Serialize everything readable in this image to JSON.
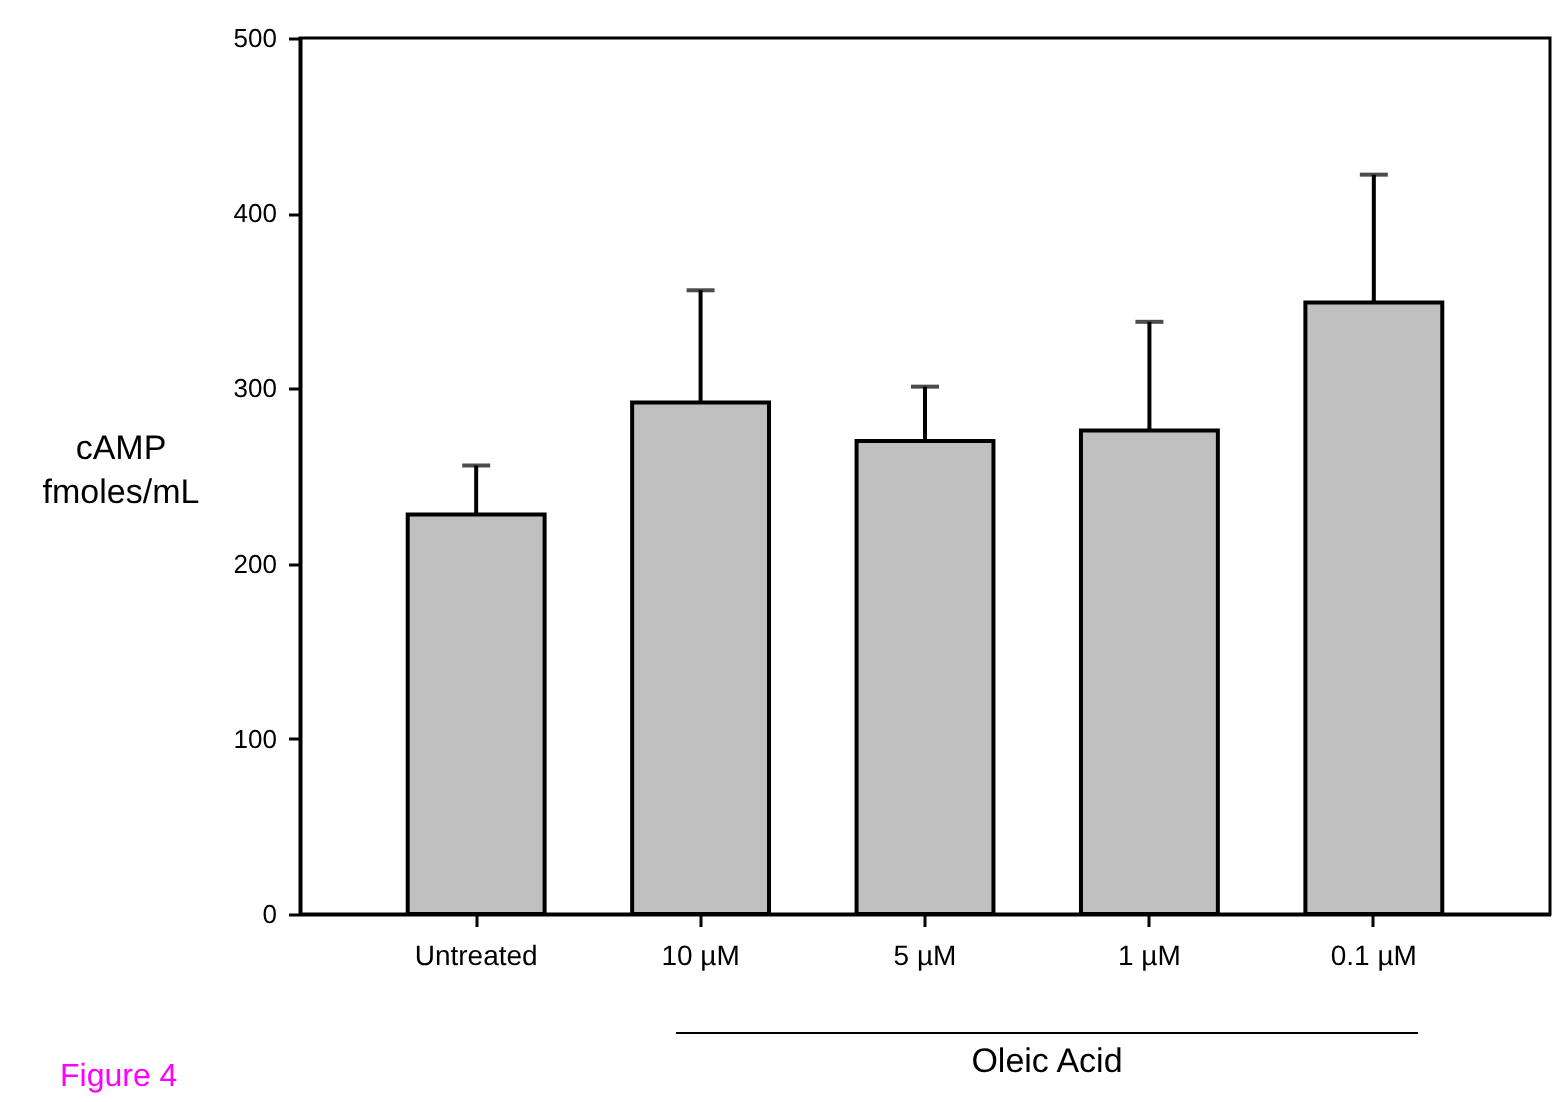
{
  "chart_data": {
    "type": "bar",
    "ylabel": "cAMP\nfmoles/mL",
    "categories": [
      "Untreated",
      "10 µM",
      "5 µM",
      "1 µM",
      "0.1 µM"
    ],
    "values": [
      228,
      292,
      270,
      276,
      349
    ],
    "errors": [
      [
        228,
        256
      ],
      [
        292,
        356
      ],
      [
        270,
        301
      ],
      [
        276,
        338
      ],
      [
        349,
        422
      ]
    ],
    "color": "#c0c0c0",
    "ylim": [
      0,
      500
    ],
    "yticks": [
      0,
      100,
      200,
      300,
      400,
      500
    ],
    "grid": false,
    "annotations": [
      "Oleic Acid",
      "Figure 4"
    ]
  }
}
